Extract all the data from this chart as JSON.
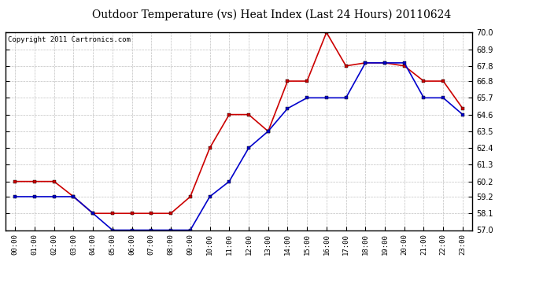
{
  "title": "Outdoor Temperature (vs) Heat Index (Last 24 Hours) 20110624",
  "copyright": "Copyright 2011 Cartronics.com",
  "x_labels": [
    "00:00",
    "01:00",
    "02:00",
    "03:00",
    "04:00",
    "05:00",
    "06:00",
    "07:00",
    "08:00",
    "09:00",
    "10:00",
    "11:00",
    "12:00",
    "13:00",
    "14:00",
    "15:00",
    "16:00",
    "17:00",
    "18:00",
    "19:00",
    "20:00",
    "21:00",
    "22:00",
    "23:00"
  ],
  "red_data": [
    60.2,
    60.2,
    60.2,
    59.2,
    58.1,
    58.1,
    58.1,
    58.1,
    58.1,
    59.2,
    62.4,
    64.6,
    64.6,
    63.5,
    66.8,
    66.8,
    70.0,
    67.8,
    68.0,
    68.0,
    67.8,
    66.8,
    66.8,
    65.0
  ],
  "blue_data": [
    59.2,
    59.2,
    59.2,
    59.2,
    58.1,
    57.0,
    57.0,
    57.0,
    57.0,
    57.0,
    59.2,
    60.2,
    62.4,
    63.5,
    65.0,
    65.7,
    65.7,
    65.7,
    68.0,
    68.0,
    68.0,
    65.7,
    65.7,
    64.6
  ],
  "ylim": [
    57.0,
    70.0
  ],
  "yticks": [
    57.0,
    58.1,
    59.2,
    60.2,
    61.3,
    62.4,
    63.5,
    64.6,
    65.7,
    66.8,
    67.8,
    68.9,
    70.0
  ],
  "red_color": "#cc0000",
  "blue_color": "#0000cc",
  "bg_color": "#ffffff",
  "plot_bg_color": "#ffffff",
  "grid_color": "#b0b0b0",
  "title_fontsize": 10,
  "copyright_fontsize": 6.5
}
